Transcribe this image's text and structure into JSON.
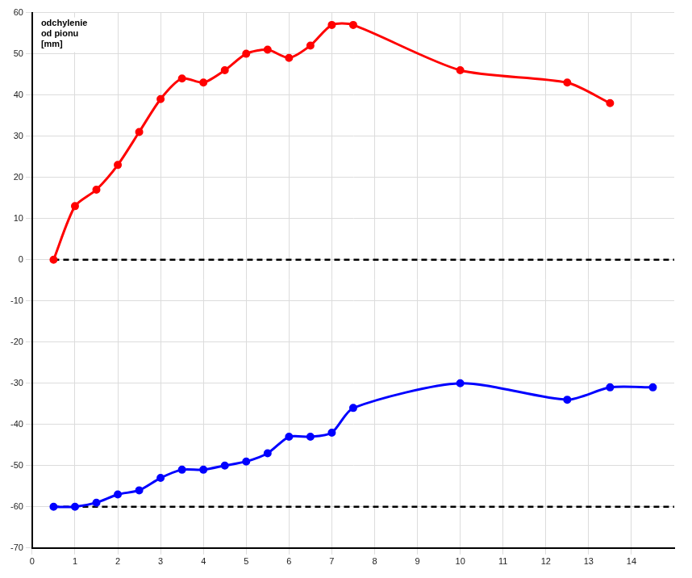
{
  "chart_data": {
    "type": "line",
    "y_label": "odchylenie od pionu [mm]",
    "series": [
      {
        "color": "#ff0000",
        "marker": "circle",
        "line_style": "solid",
        "x": [
          0.5,
          1,
          1.5,
          2,
          2.5,
          3,
          3.5,
          4,
          4.5,
          5,
          5.5,
          6,
          6.5,
          7,
          7.5,
          10,
          12.5,
          13.5
        ],
        "values": [
          0,
          13,
          17,
          23,
          31,
          39,
          44,
          43,
          46,
          50,
          51,
          49,
          52,
          57,
          57,
          46,
          43,
          38
        ]
      },
      {
        "color": "#0000ff",
        "marker": "circle",
        "line_style": "solid",
        "x": [
          0.5,
          1,
          1.5,
          2,
          2.5,
          3,
          3.5,
          4,
          4.5,
          5,
          5.5,
          6,
          6.5,
          7,
          7.5,
          10,
          12.5,
          13.5,
          14.5
        ],
        "values": [
          -60,
          -60,
          -59,
          -57,
          -56,
          -53,
          -51,
          -51,
          -50,
          -49,
          -47,
          -43,
          -43,
          -42,
          -36,
          -30,
          -34,
          -31,
          -31
        ]
      }
    ],
    "reference_lines": [
      {
        "value": 0,
        "color": "#000000",
        "line_style": "dashed"
      },
      {
        "value": -60,
        "color": "#000000",
        "line_style": "dashed"
      }
    ],
    "xlim": [
      0,
      15
    ],
    "xticks": [
      0,
      1,
      2,
      3,
      4,
      5,
      6,
      7,
      8,
      9,
      10,
      11,
      12,
      13,
      14
    ],
    "ylim": [
      -70,
      60
    ],
    "yticks": [
      -70,
      -60,
      -50,
      -40,
      -30,
      -20,
      -10,
      0,
      10,
      20,
      30,
      40,
      50,
      60
    ],
    "grid": true
  }
}
